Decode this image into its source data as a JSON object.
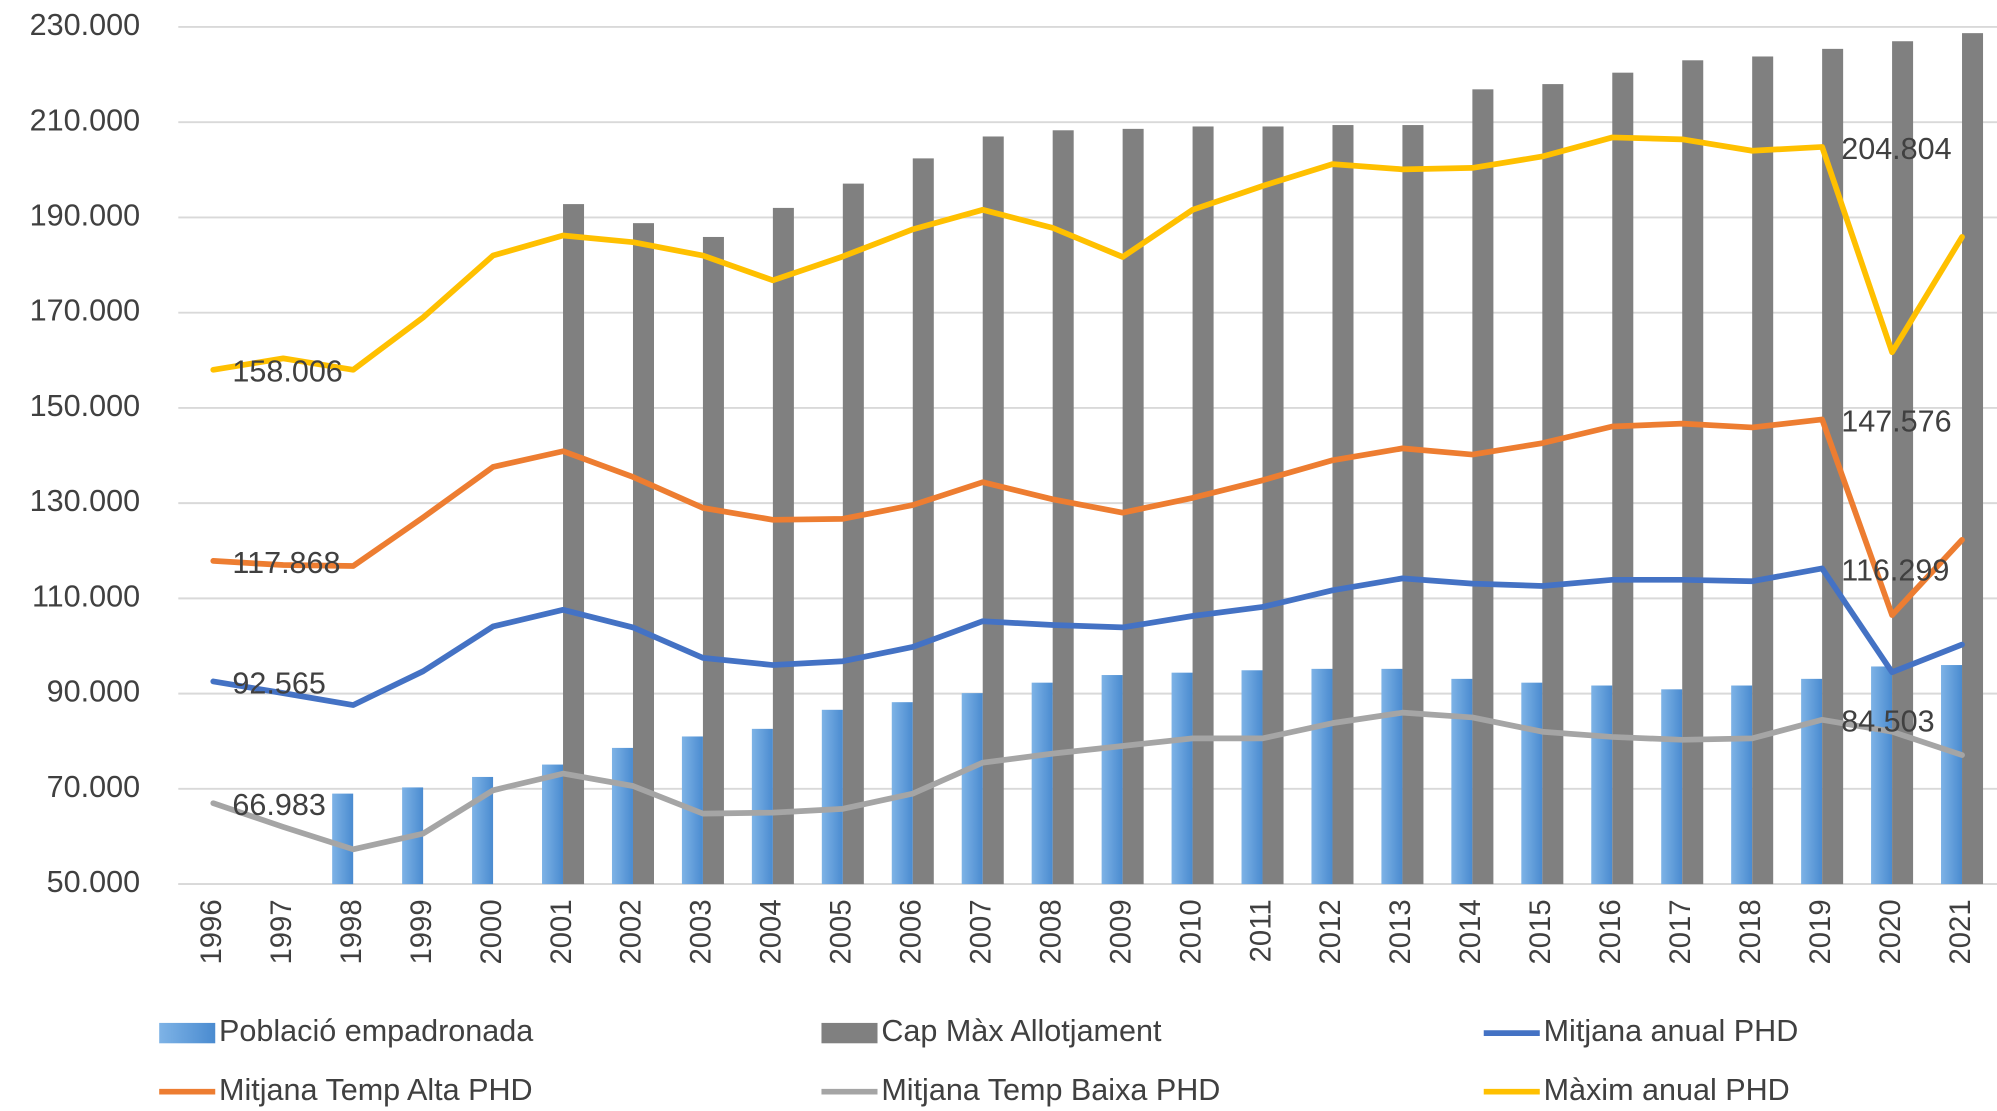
{
  "chart_data": {
    "type": "combo",
    "categories": [
      "1996",
      "1997",
      "1998",
      "1999",
      "2000",
      "2001",
      "2002",
      "2003",
      "2004",
      "2005",
      "2006",
      "2007",
      "2008",
      "2009",
      "2010",
      "2011",
      "2012",
      "2013",
      "2014",
      "2015",
      "2016",
      "2017",
      "2018",
      "2019",
      "2020",
      "2021"
    ],
    "ylim": [
      50000,
      230000
    ],
    "yticks": [
      {
        "value": 50000,
        "label": "50.000"
      },
      {
        "value": 70000,
        "label": "70.000"
      },
      {
        "value": 90000,
        "label": "90.000"
      },
      {
        "value": 110000,
        "label": "110.000"
      },
      {
        "value": 130000,
        "label": "130.000"
      },
      {
        "value": 150000,
        "label": "150.000"
      },
      {
        "value": 170000,
        "label": "170.000"
      },
      {
        "value": 190000,
        "label": "190.000"
      },
      {
        "value": 210000,
        "label": "210.000"
      },
      {
        "value": 230000,
        "label": "230.000"
      }
    ],
    "grid": true,
    "legend": "bottom",
    "series": [
      {
        "name": "Població empadronada",
        "type": "bar",
        "color": "#5b9bd5",
        "values": [
          null,
          null,
          69000,
          70300,
          72500,
          75100,
          78600,
          81000,
          82600,
          86600,
          88200,
          90100,
          92300,
          93900,
          94400,
          94900,
          95200,
          95200,
          93100,
          92300,
          91700,
          90900,
          91700,
          93100,
          95700,
          96000
        ]
      },
      {
        "name": "Cap Màx Allotjament",
        "type": "bar",
        "color": "#808080",
        "values": [
          null,
          null,
          null,
          null,
          null,
          192800,
          188800,
          185900,
          192000,
          197100,
          202400,
          207000,
          208300,
          208600,
          209100,
          209100,
          209400,
          209400,
          216900,
          218000,
          220400,
          223000,
          223800,
          225400,
          227000,
          228700
        ]
      },
      {
        "name": "Mitjana anual PHD",
        "type": "line",
        "color": "#4472c4",
        "values": [
          92565,
          90100,
          87600,
          94700,
          104100,
          107600,
          103900,
          97500,
          96000,
          96800,
          99800,
          105200,
          104400,
          103900,
          106300,
          108200,
          111700,
          114200,
          113100,
          112600,
          113900,
          113900,
          113600,
          116299,
          94500,
          100300
        ],
        "value_labels": [
          "92.565",
          null,
          null,
          null,
          null,
          null,
          null,
          null,
          null,
          null,
          null,
          null,
          null,
          null,
          null,
          null,
          null,
          null,
          null,
          null,
          null,
          null,
          null,
          "116.299",
          null,
          null
        ]
      },
      {
        "name": "Mitjana Temp Alta PHD",
        "type": "line",
        "color": "#ed7d31",
        "values": [
          117868,
          117000,
          116800,
          127000,
          137600,
          140900,
          135500,
          129000,
          126500,
          126700,
          129600,
          134400,
          130800,
          128000,
          131100,
          134800,
          139000,
          141500,
          140200,
          142600,
          146100,
          146700,
          145900,
          147576,
          106500,
          122300
        ],
        "value_labels": [
          "117.868",
          null,
          null,
          null,
          null,
          null,
          null,
          null,
          null,
          null,
          null,
          null,
          null,
          null,
          null,
          null,
          null,
          null,
          null,
          null,
          null,
          null,
          null,
          "147.576",
          null,
          null
        ]
      },
      {
        "name": "Mitjana Temp Baixa PHD",
        "type": "line",
        "color": "#a5a5a5",
        "values": [
          66983,
          62000,
          57300,
          60600,
          69700,
          73200,
          70600,
          64800,
          65000,
          65800,
          69000,
          75500,
          77400,
          79000,
          80600,
          80600,
          83800,
          86000,
          85000,
          82000,
          80900,
          80300,
          80600,
          84503,
          82000,
          77100
        ],
        "value_labels": [
          "66.983",
          null,
          null,
          null,
          null,
          null,
          null,
          null,
          null,
          null,
          null,
          null,
          null,
          null,
          null,
          null,
          null,
          null,
          null,
          null,
          null,
          null,
          null,
          "84.503",
          null,
          null
        ]
      },
      {
        "name": "Màxim anual PHD",
        "type": "line",
        "color": "#ffc000",
        "values": [
          158006,
          160400,
          158000,
          169000,
          182000,
          186200,
          184800,
          182000,
          176800,
          181800,
          187500,
          191600,
          187800,
          181700,
          191600,
          196600,
          201200,
          200100,
          200400,
          202800,
          206800,
          206400,
          204000,
          204804,
          161700,
          185900
        ],
        "value_labels": [
          "158.006",
          null,
          null,
          null,
          null,
          null,
          null,
          null,
          null,
          null,
          null,
          null,
          null,
          null,
          null,
          null,
          null,
          null,
          null,
          null,
          null,
          null,
          null,
          "204.804",
          null,
          null
        ]
      }
    ]
  }
}
